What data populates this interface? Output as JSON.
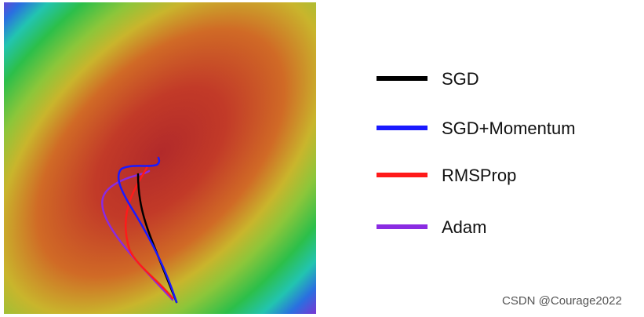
{
  "legend": [
    {
      "label": "SGD",
      "color": "#000000"
    },
    {
      "label": "SGD+Momentum",
      "color": "#1a1aff"
    },
    {
      "label": "RMSProp",
      "color": "#ff1a1a"
    },
    {
      "label": "Adam",
      "color": "#8a2be2"
    }
  ],
  "watermark": "CSDN @Courage2022"
}
